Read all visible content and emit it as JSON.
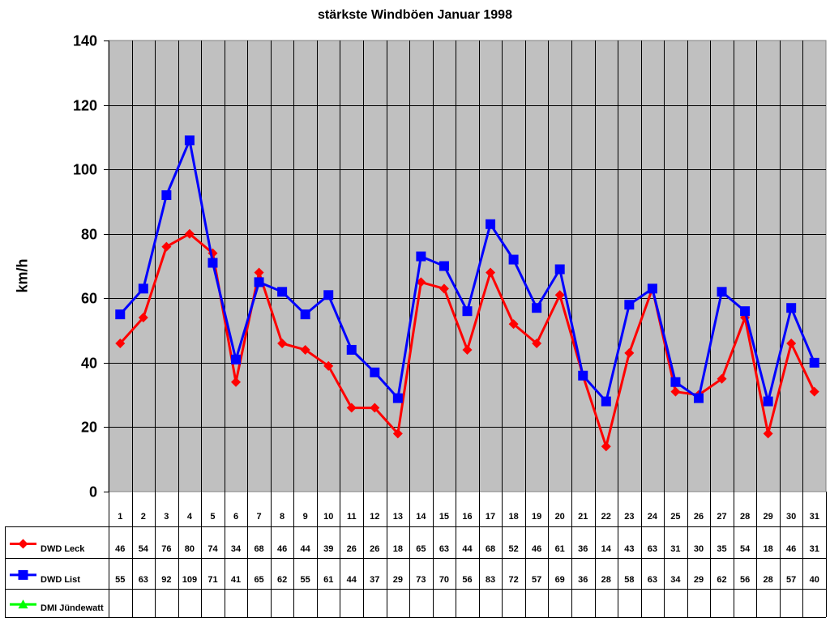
{
  "chart_data": {
    "type": "line",
    "title": "stärkste Windböen Januar 1998",
    "xlabel": "",
    "ylabel": "km/h",
    "ylim": [
      0,
      140
    ],
    "yticks": [
      0,
      20,
      40,
      60,
      80,
      100,
      120,
      140
    ],
    "categories": [
      "1",
      "2",
      "3",
      "4",
      "5",
      "6",
      "7",
      "8",
      "9",
      "10",
      "11",
      "12",
      "13",
      "14",
      "15",
      "16",
      "17",
      "18",
      "19",
      "20",
      "21",
      "22",
      "23",
      "24",
      "25",
      "26",
      "27",
      "28",
      "29",
      "30",
      "31"
    ],
    "series": [
      {
        "name": "DWD Leck",
        "color": "#ff0000",
        "marker": "diamond",
        "values": [
          46,
          54,
          76,
          80,
          74,
          34,
          68,
          46,
          44,
          39,
          26,
          26,
          18,
          65,
          63,
          44,
          68,
          52,
          46,
          61,
          36,
          14,
          43,
          63,
          31,
          30,
          35,
          54,
          18,
          46,
          31
        ]
      },
      {
        "name": "DWD List",
        "color": "#0000ff",
        "marker": "square",
        "values": [
          55,
          63,
          92,
          109,
          71,
          41,
          65,
          62,
          55,
          61,
          44,
          37,
          29,
          73,
          70,
          56,
          83,
          72,
          57,
          69,
          36,
          28,
          58,
          63,
          34,
          29,
          62,
          56,
          28,
          57,
          40
        ]
      },
      {
        "name": "DMI Jündewatt",
        "color": "#00ff00",
        "marker": "triangle",
        "values": []
      }
    ],
    "grid": true,
    "legend_position": "data-table-left",
    "plot_background": "#c0c0c0"
  }
}
